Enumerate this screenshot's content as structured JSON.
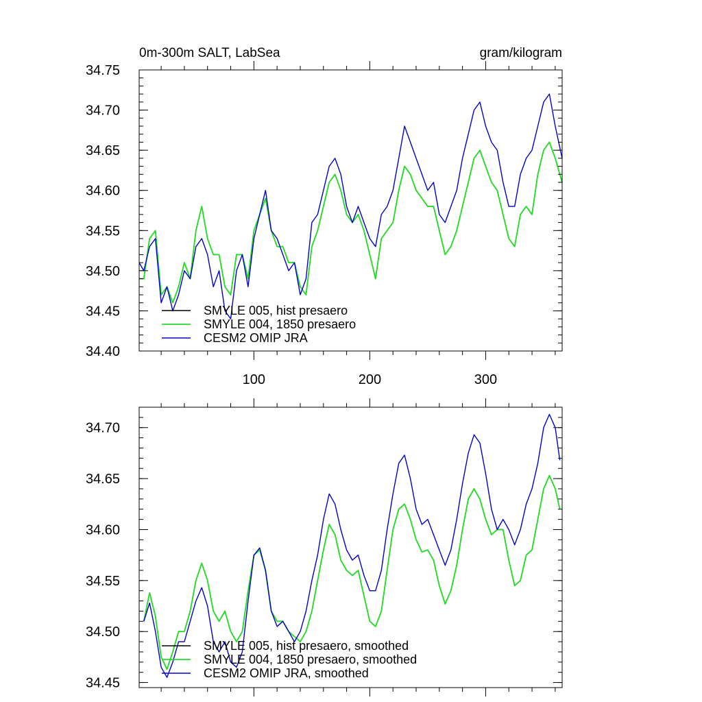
{
  "chart_data": [
    {
      "type": "line",
      "title_left": "0m-300m SALT, LabSea",
      "title_right": "gram/kilogram",
      "xlabel": "",
      "ylabel": "",
      "xlim": [
        1,
        366
      ],
      "ylim": [
        34.4,
        34.75
      ],
      "xticks": [
        100,
        200,
        300
      ],
      "xtick_labels": [
        "100",
        "200",
        "300"
      ],
      "yticks": [
        34.4,
        34.45,
        34.5,
        34.55,
        34.6,
        34.65,
        34.7,
        34.75
      ],
      "ytick_labels": [
        "34.40",
        "34.45",
        "34.50",
        "34.55",
        "34.60",
        "34.65",
        "34.70",
        "34.75"
      ],
      "grid": false,
      "legend_position": "bottom-left",
      "series": [
        {
          "name": "SMYLE 005, hist presaero",
          "color": "#000000",
          "x": [
            1,
            5,
            10,
            15,
            20,
            25,
            30,
            35,
            40,
            45,
            50,
            55,
            60,
            65,
            70,
            75,
            80,
            85,
            90,
            95,
            100,
            105,
            110,
            115,
            120,
            125,
            130,
            135,
            140,
            145,
            150,
            155,
            160,
            165,
            170,
            175,
            180,
            185,
            190,
            195,
            200,
            205,
            210,
            215,
            220,
            225,
            230,
            235,
            240,
            245,
            250,
            255,
            260,
            265,
            270,
            275,
            280,
            285,
            290,
            295,
            300,
            305,
            310,
            315,
            320,
            325,
            330,
            335,
            340,
            345,
            350,
            355,
            360,
            366
          ],
          "values": [
            34.49,
            34.49,
            34.54,
            34.55,
            34.47,
            34.48,
            34.46,
            34.48,
            34.51,
            34.49,
            34.55,
            34.58,
            34.54,
            34.52,
            34.52,
            34.48,
            34.47,
            34.52,
            34.52,
            34.49,
            34.55,
            34.57,
            34.59,
            34.55,
            34.53,
            34.53,
            34.51,
            34.51,
            34.48,
            34.47,
            34.53,
            34.55,
            34.58,
            34.61,
            34.62,
            34.6,
            34.57,
            34.56,
            34.57,
            34.55,
            34.52,
            34.49,
            34.54,
            34.55,
            34.56,
            34.6,
            34.63,
            34.62,
            34.6,
            34.59,
            34.58,
            34.58,
            34.55,
            34.52,
            34.53,
            34.55,
            34.58,
            34.61,
            34.64,
            34.65,
            34.63,
            34.61,
            34.6,
            34.57,
            34.54,
            34.53,
            34.57,
            34.58,
            34.57,
            34.62,
            34.65,
            34.66,
            34.64,
            34.61
          ]
        },
        {
          "name": "SMYLE 004, 1850 presaero",
          "color": "#22dd22",
          "x": [
            1,
            5,
            10,
            15,
            20,
            25,
            30,
            35,
            40,
            45,
            50,
            55,
            60,
            65,
            70,
            75,
            80,
            85,
            90,
            95,
            100,
            105,
            110,
            115,
            120,
            125,
            130,
            135,
            140,
            145,
            150,
            155,
            160,
            165,
            170,
            175,
            180,
            185,
            190,
            195,
            200,
            205,
            210,
            215,
            220,
            225,
            230,
            235,
            240,
            245,
            250,
            255,
            260,
            265,
            270,
            275,
            280,
            285,
            290,
            295,
            300,
            305,
            310,
            315,
            320,
            325,
            330,
            335,
            340,
            345,
            350,
            355,
            360,
            366
          ],
          "values": [
            34.49,
            34.49,
            34.54,
            34.55,
            34.47,
            34.48,
            34.46,
            34.48,
            34.51,
            34.49,
            34.55,
            34.58,
            34.54,
            34.52,
            34.52,
            34.48,
            34.47,
            34.52,
            34.52,
            34.49,
            34.55,
            34.57,
            34.59,
            34.55,
            34.53,
            34.53,
            34.51,
            34.51,
            34.48,
            34.47,
            34.53,
            34.55,
            34.58,
            34.61,
            34.62,
            34.6,
            34.57,
            34.56,
            34.57,
            34.55,
            34.52,
            34.49,
            34.54,
            34.55,
            34.56,
            34.6,
            34.63,
            34.62,
            34.6,
            34.59,
            34.58,
            34.58,
            34.55,
            34.52,
            34.53,
            34.55,
            34.58,
            34.61,
            34.64,
            34.65,
            34.63,
            34.61,
            34.6,
            34.57,
            34.54,
            34.53,
            34.57,
            34.58,
            34.57,
            34.62,
            34.65,
            34.66,
            34.64,
            34.61
          ]
        },
        {
          "name": "CESM2 OMIP JRA",
          "color": "#0000cc",
          "x": [
            1,
            5,
            10,
            15,
            20,
            25,
            30,
            35,
            40,
            45,
            50,
            55,
            60,
            65,
            70,
            75,
            80,
            85,
            90,
            95,
            100,
            105,
            110,
            115,
            120,
            125,
            130,
            135,
            140,
            145,
            150,
            155,
            160,
            165,
            170,
            175,
            180,
            185,
            190,
            195,
            200,
            205,
            210,
            215,
            220,
            225,
            230,
            235,
            240,
            245,
            250,
            255,
            260,
            265,
            270,
            275,
            280,
            285,
            290,
            295,
            300,
            305,
            310,
            315,
            320,
            325,
            330,
            335,
            340,
            345,
            350,
            355,
            360,
            366
          ],
          "values": [
            34.51,
            34.5,
            34.53,
            34.54,
            34.46,
            34.48,
            34.45,
            34.47,
            34.5,
            34.49,
            34.53,
            34.54,
            34.52,
            34.48,
            34.5,
            34.45,
            34.44,
            34.5,
            34.52,
            34.48,
            34.54,
            34.57,
            34.6,
            34.55,
            34.54,
            34.52,
            34.5,
            34.51,
            34.47,
            34.49,
            34.56,
            34.57,
            34.6,
            34.63,
            34.64,
            34.62,
            34.58,
            34.56,
            34.58,
            34.56,
            34.54,
            34.53,
            34.57,
            34.58,
            34.6,
            34.64,
            34.68,
            34.66,
            34.64,
            34.62,
            34.6,
            34.61,
            34.57,
            34.56,
            34.58,
            34.6,
            34.64,
            34.67,
            34.7,
            34.71,
            34.68,
            34.66,
            34.65,
            34.61,
            34.58,
            34.58,
            34.62,
            34.64,
            34.65,
            34.68,
            34.71,
            34.72,
            34.68,
            34.64
          ]
        }
      ]
    },
    {
      "type": "line",
      "title_left": "",
      "title_right": "",
      "xlabel": "",
      "ylabel": "",
      "xlim": [
        1,
        366
      ],
      "ylim": [
        34.445,
        34.72
      ],
      "xticks": [
        100,
        200,
        300
      ],
      "xtick_labels": [],
      "yticks": [
        34.45,
        34.5,
        34.55,
        34.6,
        34.65,
        34.7
      ],
      "ytick_labels": [
        "34.45",
        "34.50",
        "34.55",
        "34.60",
        "34.65",
        "34.70"
      ],
      "grid": false,
      "legend_position": "bottom-left",
      "series": [
        {
          "name": "SMYLE 005, hist presaero, smoothed",
          "color": "#000000",
          "x": [
            5,
            10,
            15,
            20,
            25,
            30,
            35,
            40,
            45,
            50,
            55,
            60,
            65,
            70,
            75,
            80,
            85,
            90,
            95,
            100,
            105,
            110,
            115,
            120,
            125,
            130,
            135,
            140,
            145,
            150,
            155,
            160,
            165,
            170,
            175,
            180,
            185,
            190,
            195,
            200,
            205,
            210,
            215,
            220,
            225,
            230,
            235,
            240,
            245,
            250,
            255,
            260,
            265,
            270,
            275,
            280,
            285,
            290,
            295,
            300,
            305,
            310,
            315,
            320,
            325,
            330,
            335,
            340,
            345,
            350,
            355,
            360,
            364
          ],
          "values": [
            34.51,
            34.538,
            34.515,
            34.475,
            34.463,
            34.48,
            34.5,
            34.5,
            34.52,
            34.55,
            34.567,
            34.55,
            34.52,
            34.51,
            34.52,
            34.5,
            34.49,
            34.5,
            34.54,
            34.575,
            34.58,
            34.56,
            34.52,
            34.51,
            34.51,
            34.5,
            34.495,
            34.49,
            34.5,
            34.52,
            34.55,
            34.58,
            34.605,
            34.595,
            34.57,
            34.56,
            34.555,
            34.56,
            34.535,
            34.51,
            34.505,
            34.52,
            34.56,
            34.6,
            34.62,
            34.625,
            34.61,
            34.59,
            34.578,
            34.58,
            34.57,
            34.545,
            34.527,
            34.54,
            34.565,
            34.6,
            34.63,
            34.64,
            34.63,
            34.61,
            34.595,
            34.6,
            34.6,
            34.57,
            34.545,
            34.55,
            34.575,
            34.58,
            34.61,
            34.64,
            34.653,
            34.64,
            34.62
          ]
        },
        {
          "name": "SMYLE 004, 1850 presaero, smoothed",
          "color": "#22dd22",
          "x": [
            5,
            10,
            15,
            20,
            25,
            30,
            35,
            40,
            45,
            50,
            55,
            60,
            65,
            70,
            75,
            80,
            85,
            90,
            95,
            100,
            105,
            110,
            115,
            120,
            125,
            130,
            135,
            140,
            145,
            150,
            155,
            160,
            165,
            170,
            175,
            180,
            185,
            190,
            195,
            200,
            205,
            210,
            215,
            220,
            225,
            230,
            235,
            240,
            245,
            250,
            255,
            260,
            265,
            270,
            275,
            280,
            285,
            290,
            295,
            300,
            305,
            310,
            315,
            320,
            325,
            330,
            335,
            340,
            345,
            350,
            355,
            360,
            364
          ],
          "values": [
            34.51,
            34.538,
            34.515,
            34.475,
            34.463,
            34.48,
            34.5,
            34.5,
            34.52,
            34.55,
            34.567,
            34.55,
            34.52,
            34.51,
            34.52,
            34.5,
            34.49,
            34.5,
            34.54,
            34.575,
            34.58,
            34.56,
            34.52,
            34.51,
            34.51,
            34.5,
            34.495,
            34.49,
            34.5,
            34.52,
            34.55,
            34.58,
            34.605,
            34.595,
            34.57,
            34.56,
            34.555,
            34.56,
            34.535,
            34.51,
            34.505,
            34.52,
            34.56,
            34.6,
            34.62,
            34.625,
            34.61,
            34.59,
            34.578,
            34.58,
            34.57,
            34.545,
            34.527,
            34.54,
            34.565,
            34.6,
            34.63,
            34.64,
            34.63,
            34.61,
            34.595,
            34.6,
            34.6,
            34.57,
            34.545,
            34.55,
            34.575,
            34.58,
            34.61,
            34.64,
            34.653,
            34.64,
            34.62
          ]
        },
        {
          "name": "CESM2 OMIP JRA, smoothed",
          "color": "#0000cc",
          "x": [
            5,
            10,
            15,
            20,
            25,
            30,
            35,
            40,
            45,
            50,
            55,
            60,
            65,
            70,
            75,
            80,
            85,
            90,
            95,
            100,
            105,
            110,
            115,
            120,
            125,
            130,
            135,
            140,
            145,
            150,
            155,
            160,
            165,
            170,
            175,
            180,
            185,
            190,
            195,
            200,
            205,
            210,
            215,
            220,
            225,
            230,
            235,
            240,
            245,
            250,
            255,
            260,
            265,
            270,
            275,
            280,
            285,
            290,
            295,
            300,
            305,
            310,
            315,
            320,
            325,
            330,
            335,
            340,
            345,
            350,
            355,
            360,
            364
          ],
          "values": [
            34.51,
            34.528,
            34.5,
            34.465,
            34.455,
            34.47,
            34.49,
            34.49,
            34.51,
            34.53,
            34.543,
            34.525,
            34.49,
            34.48,
            34.49,
            34.47,
            34.465,
            34.48,
            34.53,
            34.575,
            34.582,
            34.56,
            34.52,
            34.505,
            34.51,
            34.5,
            34.49,
            34.5,
            34.52,
            34.55,
            34.575,
            34.61,
            34.635,
            34.625,
            34.6,
            34.58,
            34.57,
            34.575,
            34.555,
            34.54,
            34.54,
            34.56,
            34.6,
            34.635,
            34.665,
            34.673,
            34.65,
            34.62,
            34.605,
            34.61,
            34.595,
            34.58,
            34.565,
            34.58,
            34.61,
            34.645,
            34.675,
            34.693,
            34.685,
            34.655,
            34.62,
            34.6,
            34.61,
            34.6,
            34.585,
            34.6,
            34.625,
            34.64,
            34.665,
            34.7,
            34.713,
            34.7,
            34.668
          ]
        }
      ]
    }
  ]
}
